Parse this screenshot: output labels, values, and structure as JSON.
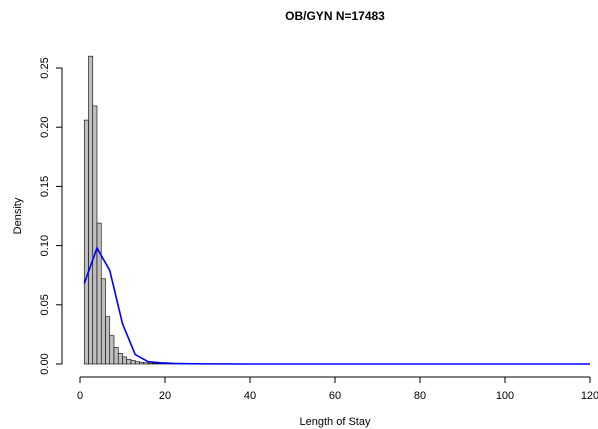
{
  "chart_data": {
    "type": "histogram",
    "title": "OB/GYN N=17483",
    "xlabel": "Length of Stay",
    "ylabel": "Density",
    "bins": [
      1,
      2,
      3,
      4,
      5,
      6,
      7,
      8,
      9,
      10,
      11,
      12,
      13,
      14,
      15,
      16,
      17,
      18,
      19,
      20,
      21,
      22,
      23,
      24,
      25,
      26,
      27,
      28,
      29,
      30,
      31
    ],
    "values": [
      0.206,
      0.26,
      0.218,
      0.119,
      0.072,
      0.04,
      0.024,
      0.014,
      0.009,
      0.006,
      0.004,
      0.003,
      0.002,
      0.0015,
      0.001,
      0.0008,
      0.0006,
      0.0005,
      0.0004,
      0.0003,
      0.0003,
      0.0002,
      0.0002,
      0.0002,
      0.0001,
      0.0001,
      0.0001,
      0.0001,
      0.0001,
      0.0001
    ],
    "color": "#bebebe",
    "line": {
      "x": [
        1,
        4,
        7,
        10,
        13,
        16,
        19,
        22,
        25,
        30,
        40,
        60,
        80,
        100,
        120
      ],
      "values": [
        0.068,
        0.098,
        0.079,
        0.034,
        0.008,
        0.002,
        0.001,
        0.0005,
        0.0003,
        0.0001,
        0,
        0,
        0,
        0,
        0
      ],
      "color": "#0000ff"
    },
    "xlim": [
      0,
      120
    ],
    "ylim": [
      0,
      0.25
    ],
    "xticks": [
      0,
      20,
      40,
      60,
      80,
      100,
      120
    ],
    "yticks": [
      {
        "value": 0,
        "label": "0.00"
      },
      {
        "value": 0.05,
        "label": "0.05"
      },
      {
        "value": 0.1,
        "label": "0.10"
      },
      {
        "value": 0.15,
        "label": "0.15"
      },
      {
        "value": 0.2,
        "label": "0.20"
      },
      {
        "value": 0.25,
        "label": "0.25"
      }
    ]
  }
}
